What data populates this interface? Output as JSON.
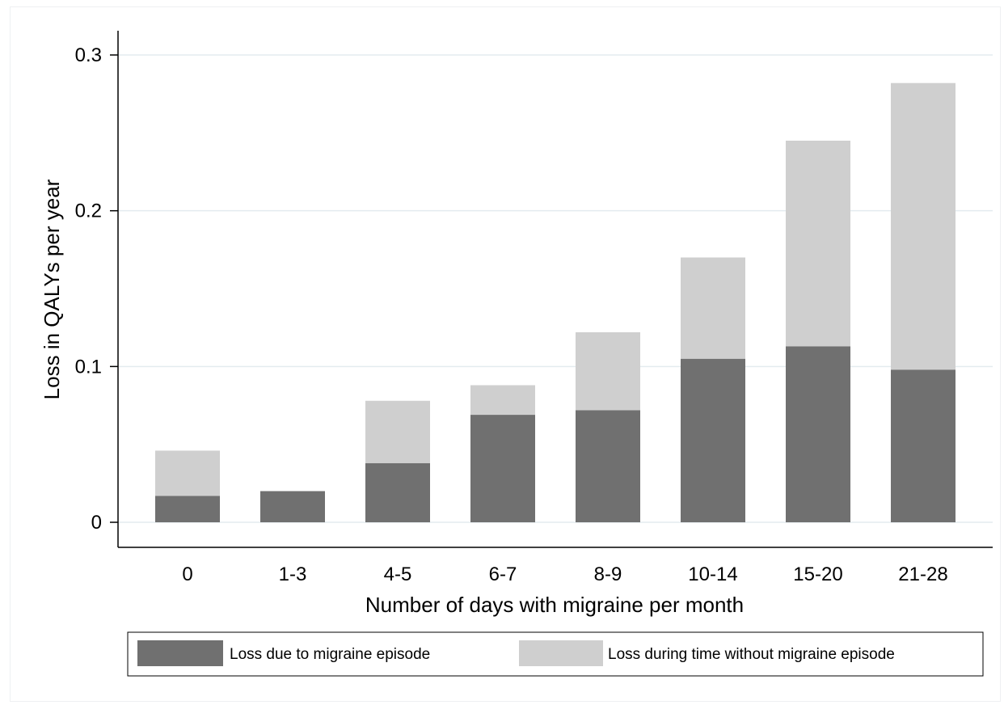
{
  "chart_data": {
    "type": "bar",
    "stacked": true,
    "categories": [
      "0",
      "1-3",
      "4-5",
      "6-7",
      "8-9",
      "10-14",
      "15-20",
      "21-28"
    ],
    "series": [
      {
        "name": "Loss due to migraine episode",
        "color": "#707070",
        "values": [
          0.017,
          0.02,
          0.038,
          0.069,
          0.072,
          0.105,
          0.113,
          0.098
        ]
      },
      {
        "name": "Loss during time without migraine episode",
        "color": "#cfcfcf",
        "values": [
          0.029,
          0.0,
          0.04,
          0.019,
          0.05,
          0.065,
          0.132,
          0.184
        ]
      }
    ],
    "xlabel": "Number of days with migraine per month",
    "ylabel": "Loss in QALYs per year",
    "ylim": [
      0,
      0.3
    ],
    "yticks": [
      {
        "value": 0,
        "label": "0"
      },
      {
        "value": 0.1,
        "label": "0.1"
      },
      {
        "value": 0.2,
        "label": "0.2"
      },
      {
        "value": 0.3,
        "label": "0.3"
      }
    ],
    "grid": true,
    "legend_position": "bottom"
  }
}
